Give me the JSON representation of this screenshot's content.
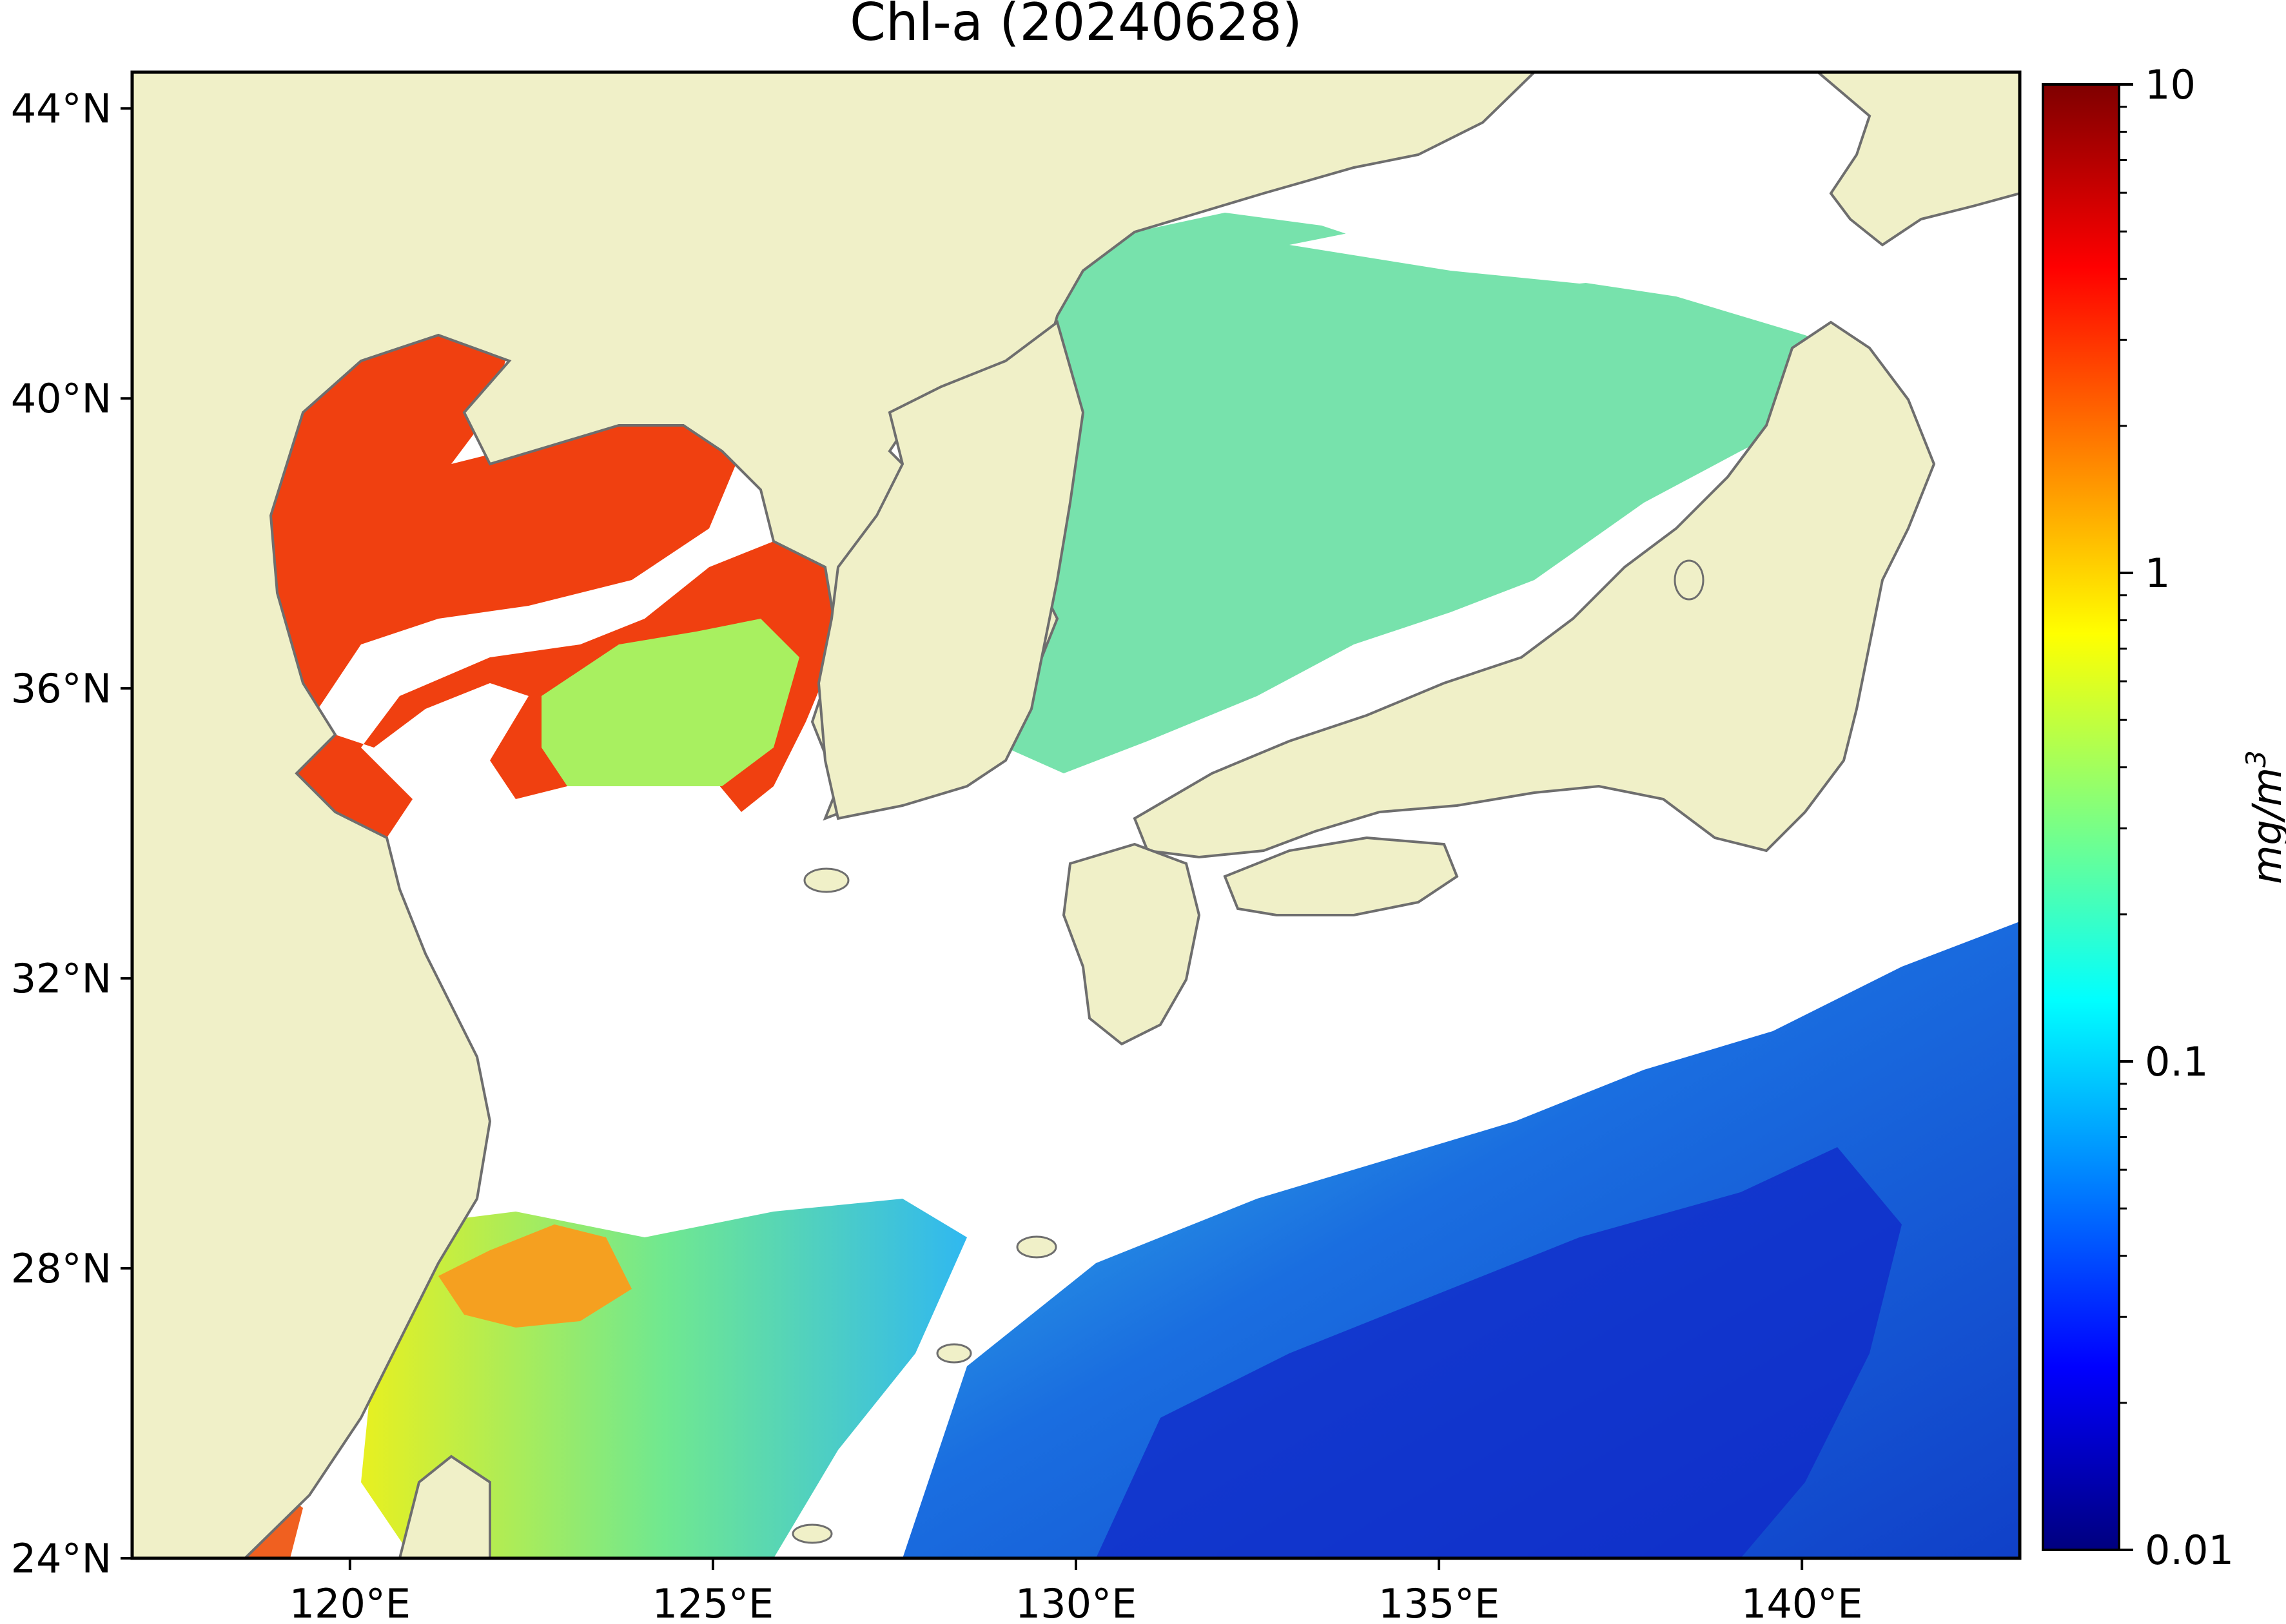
{
  "title": "Chl-a (20240628)",
  "map": {
    "lon_range": [
      117,
      143
    ],
    "lat_range": [
      24,
      44.5
    ],
    "lon_ticks": [
      {
        "value": 120,
        "label": "120°E"
      },
      {
        "value": 125,
        "label": "125°E"
      },
      {
        "value": 130,
        "label": "130°E"
      },
      {
        "value": 135,
        "label": "135°E"
      },
      {
        "value": 140,
        "label": "140°E"
      }
    ],
    "lat_ticks": [
      {
        "value": 24,
        "label": "24°N"
      },
      {
        "value": 28,
        "label": "28°N"
      },
      {
        "value": 32,
        "label": "32°N"
      },
      {
        "value": 36,
        "label": "36°N"
      },
      {
        "value": 40,
        "label": "40°N"
      },
      {
        "value": 44,
        "label": "44°N"
      }
    ],
    "colors": {
      "land": "#f0f0c8",
      "coastline": "#6e6e6e",
      "cloud_no_data": "#ffffff",
      "frame": "#000000"
    }
  },
  "colorbar": {
    "scale": "log",
    "min": 0.01,
    "max": 10,
    "unit_label": "mg/m",
    "unit_exponent": "3",
    "colormap": "jet",
    "ticks": [
      {
        "value": 10,
        "label": "10"
      },
      {
        "value": 1,
        "label": "1"
      },
      {
        "value": 0.1,
        "label": "0.1"
      },
      {
        "value": 0.01,
        "label": "0.01"
      }
    ]
  }
}
